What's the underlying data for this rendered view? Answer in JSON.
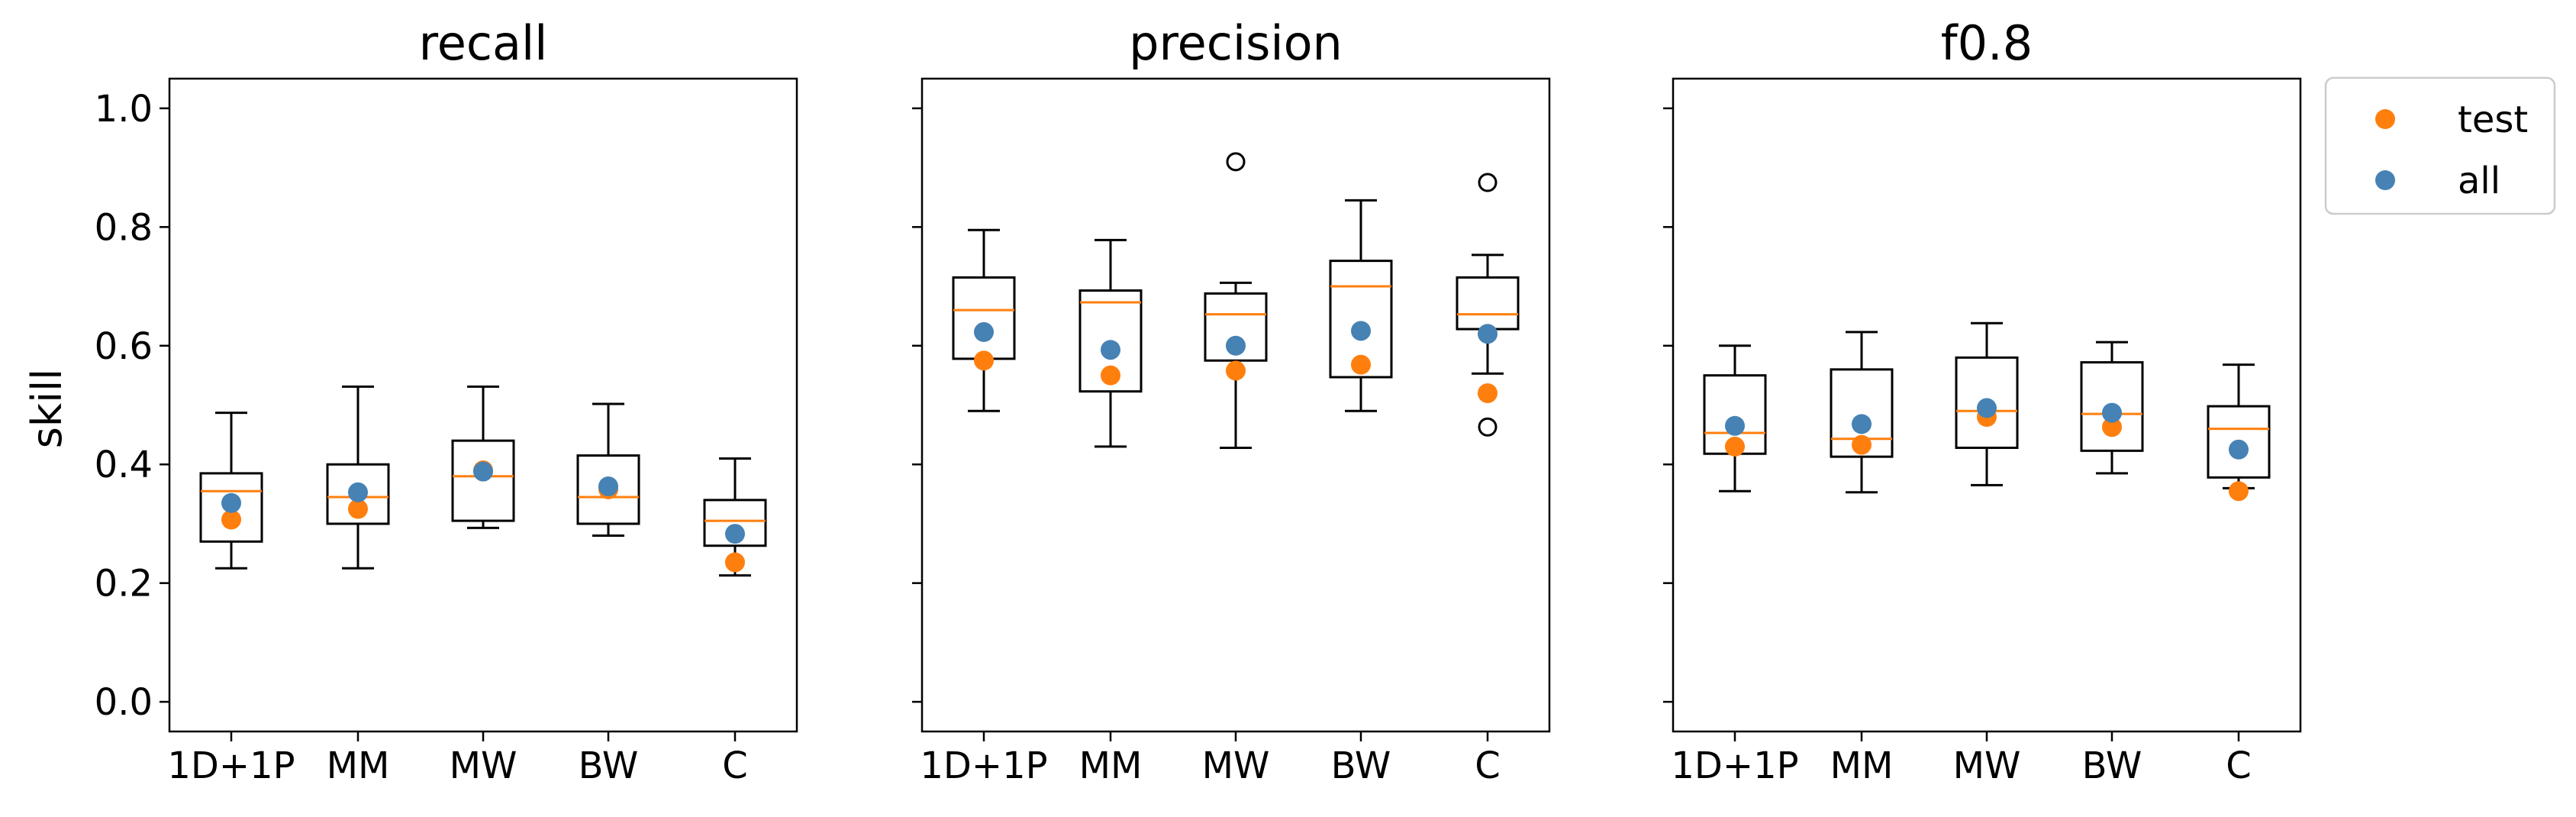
{
  "chart_data": {
    "type": "box",
    "ylabel": "skill",
    "ylim": [
      -0.05,
      1.05
    ],
    "yticks": [
      "0.0",
      "0.2",
      "0.4",
      "0.6",
      "0.8",
      "1.0"
    ],
    "categories": [
      "1D+1P",
      "MM",
      "MW",
      "BW",
      "C"
    ],
    "legend": {
      "placement": "upper-right-outside",
      "entries": [
        {
          "label": "test",
          "color": "#ff7f0e"
        },
        {
          "label": "all",
          "color": "#4682b4"
        }
      ]
    },
    "colors": {
      "median": "#ff7f0e",
      "test": "#ff7f0e",
      "all": "#4682b4"
    },
    "panels": [
      {
        "title": "recall",
        "boxes": [
          {
            "category": "1D+1P",
            "whislo": 0.225,
            "q1": 0.27,
            "med": 0.355,
            "q3": 0.385,
            "whishi": 0.487,
            "fliers": []
          },
          {
            "category": "MM",
            "whislo": 0.225,
            "q1": 0.3,
            "med": 0.345,
            "q3": 0.4,
            "whishi": 0.531,
            "fliers": []
          },
          {
            "category": "MW",
            "whislo": 0.293,
            "q1": 0.305,
            "med": 0.38,
            "q3": 0.44,
            "whishi": 0.531,
            "fliers": []
          },
          {
            "category": "BW",
            "whislo": 0.28,
            "q1": 0.3,
            "med": 0.345,
            "q3": 0.415,
            "whishi": 0.502,
            "fliers": []
          },
          {
            "category": "C",
            "whislo": 0.213,
            "q1": 0.263,
            "med": 0.305,
            "q3": 0.34,
            "whishi": 0.41,
            "fliers": []
          }
        ],
        "test": [
          0.307,
          0.325,
          0.39,
          0.358,
          0.235
        ],
        "all": [
          0.335,
          0.353,
          0.388,
          0.363,
          0.283
        ]
      },
      {
        "title": "precision",
        "boxes": [
          {
            "category": "1D+1P",
            "whislo": 0.49,
            "q1": 0.578,
            "med": 0.66,
            "q3": 0.715,
            "whishi": 0.795,
            "fliers": []
          },
          {
            "category": "MM",
            "whislo": 0.43,
            "q1": 0.523,
            "med": 0.673,
            "q3": 0.693,
            "whishi": 0.778,
            "fliers": []
          },
          {
            "category": "MW",
            "whislo": 0.428,
            "q1": 0.575,
            "med": 0.653,
            "q3": 0.688,
            "whishi": 0.706,
            "fliers": [
              0.91
            ]
          },
          {
            "category": "BW",
            "whislo": 0.49,
            "q1": 0.547,
            "med": 0.7,
            "q3": 0.743,
            "whishi": 0.845,
            "fliers": []
          },
          {
            "category": "C",
            "whislo": 0.553,
            "q1": 0.628,
            "med": 0.653,
            "q3": 0.715,
            "whishi": 0.753,
            "fliers": [
              0.875,
              0.463
            ]
          }
        ],
        "test": [
          0.575,
          0.55,
          0.558,
          0.568,
          0.52
        ],
        "all": [
          0.623,
          0.593,
          0.6,
          0.625,
          0.62
        ]
      },
      {
        "title": "f0.8",
        "boxes": [
          {
            "category": "1D+1P",
            "whislo": 0.355,
            "q1": 0.418,
            "med": 0.453,
            "q3": 0.55,
            "whishi": 0.6,
            "fliers": []
          },
          {
            "category": "MM",
            "whislo": 0.353,
            "q1": 0.413,
            "med": 0.443,
            "q3": 0.56,
            "whishi": 0.623,
            "fliers": []
          },
          {
            "category": "MW",
            "whislo": 0.365,
            "q1": 0.428,
            "med": 0.49,
            "q3": 0.58,
            "whishi": 0.638,
            "fliers": []
          },
          {
            "category": "BW",
            "whislo": 0.385,
            "q1": 0.423,
            "med": 0.485,
            "q3": 0.572,
            "whishi": 0.606,
            "fliers": []
          },
          {
            "category": "C",
            "whislo": 0.36,
            "q1": 0.378,
            "med": 0.46,
            "q3": 0.498,
            "whishi": 0.568,
            "fliers": []
          }
        ],
        "test": [
          0.43,
          0.433,
          0.48,
          0.463,
          0.355
        ],
        "all": [
          0.465,
          0.468,
          0.495,
          0.487,
          0.425
        ]
      }
    ]
  }
}
